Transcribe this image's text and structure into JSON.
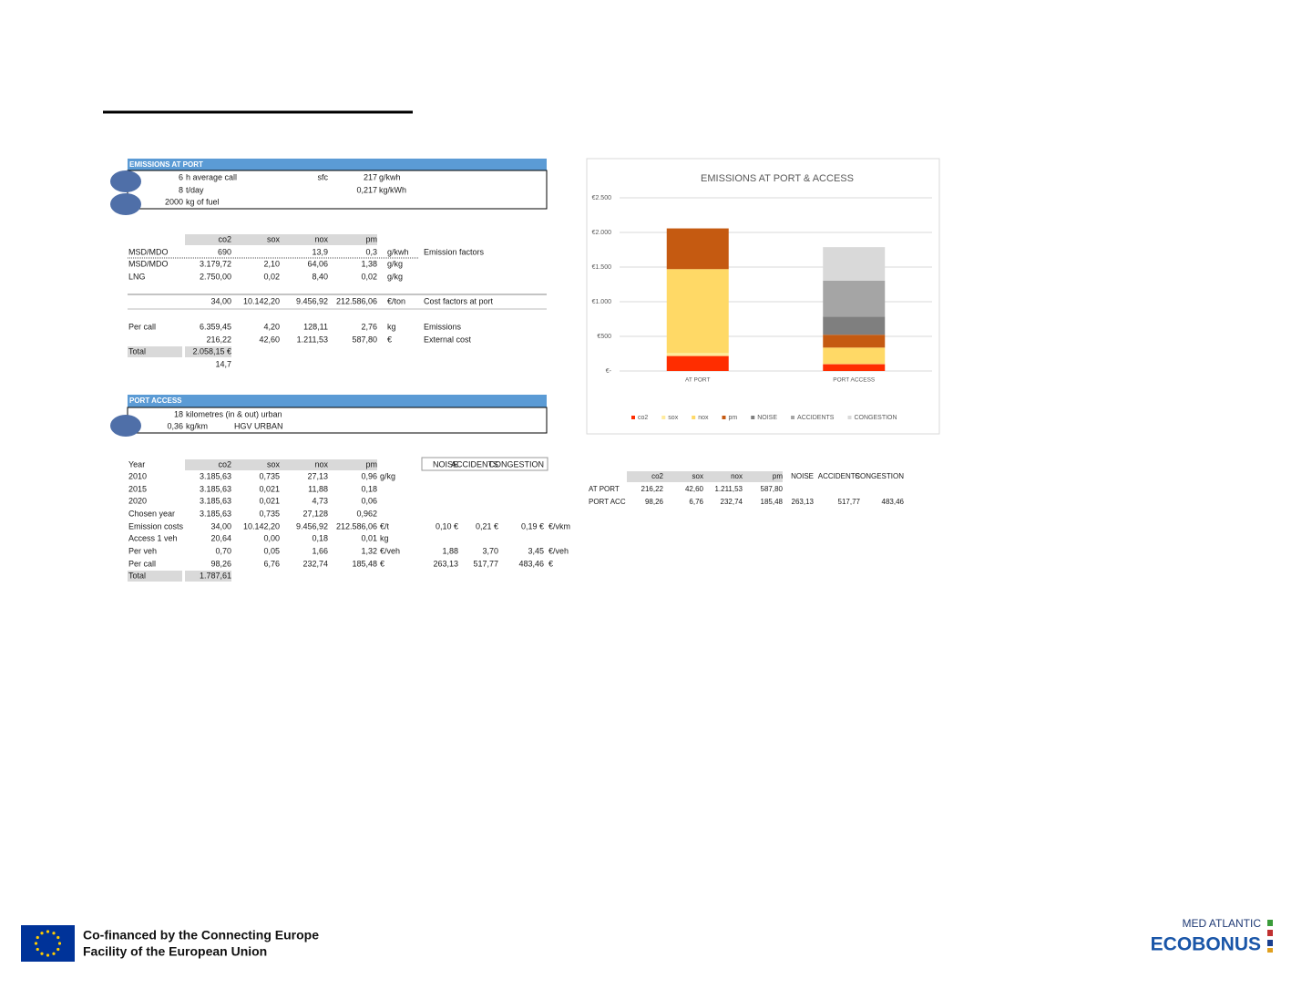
{
  "port_inputs": {
    "header": "EMISSIONS AT PORT",
    "rows": [
      [
        "6",
        "h average call",
        "sfc",
        "217",
        "g/kwh"
      ],
      [
        "8",
        "t/day",
        null,
        "0,217",
        "kg/kWh"
      ],
      [
        "2000",
        "kg of fuel"
      ]
    ]
  },
  "emission_factors": {
    "header": [
      null,
      "co2",
      "sox",
      "nox",
      "pm"
    ],
    "rows": [
      [
        "MSD/MDO",
        "690",
        null,
        "13,9",
        "0,3",
        "g/kwh",
        "Emission factors"
      ],
      [
        "MSD/MDO",
        "3.179,72",
        "2,10",
        "64,06",
        "1,38",
        "g/kg"
      ],
      [
        "LNG",
        "2.750,00",
        "0,02",
        "8,40",
        "0,02",
        "g/kg"
      ],
      [
        null,
        "34,00",
        "10.142,20",
        "9.456,92",
        "212.586,06",
        "€/ton",
        "Cost factors at port"
      ],
      [
        "Per call",
        "6.359,45",
        "4,20",
        "128,11",
        "2,76",
        "kg",
        "Emissions"
      ],
      [
        null,
        "216,22",
        "42,60",
        "1.211,53",
        "587,80",
        "€",
        "External cost"
      ],
      [
        "Total",
        "2.058,15 €"
      ],
      [
        null,
        "14,7"
      ]
    ]
  },
  "port_access_inputs": {
    "header": "PORT ACCESS",
    "rows": [
      [
        "18",
        "kilometres (in & out) urban"
      ],
      [
        "0,36",
        "kg/km",
        "HGV URBAN"
      ]
    ]
  },
  "port_access_table": {
    "header": [
      "Year",
      "co2",
      "sox",
      "nox",
      "pm",
      null,
      "NOISE",
      "ACCIDENTS",
      "CONGESTION"
    ],
    "rows": [
      [
        "2010",
        "3.185,63",
        "0,735",
        "27,13",
        "0,96",
        "g/kg"
      ],
      [
        "2015",
        "3.185,63",
        "0,021",
        "11,88",
        "0,18"
      ],
      [
        "2020",
        "3.185,63",
        "0,021",
        "4,73",
        "0,06"
      ],
      [
        "Chosen year",
        "3.185,63",
        "0,735",
        "27,128",
        "0,962"
      ],
      [
        "Emission costs",
        "34,00",
        "10.142,20",
        "9.456,92",
        "212.586,06",
        "€/t",
        "0,10 €",
        "0,21 €",
        "0,19 €",
        "€/vkm"
      ],
      [
        "Access 1 veh",
        "20,64",
        "0,00",
        "0,18",
        "0,01",
        "kg"
      ],
      [
        "Per veh",
        "0,70",
        "0,05",
        "1,66",
        "1,32",
        "€/veh",
        "1,88",
        "3,70",
        "3,45",
        "€/veh"
      ],
      [
        "Per call",
        "98,26",
        "6,76",
        "232,74",
        "185,48",
        "€",
        "263,13",
        "517,77",
        "483,46",
        "€"
      ],
      [
        "Total",
        "1.787,61"
      ]
    ]
  },
  "summary_table": {
    "header": [
      null,
      "co2",
      "sox",
      "nox",
      "pm",
      "NOISE",
      "ACCIDENTS",
      "CONGESTION"
    ],
    "rows": [
      [
        "AT PORT",
        "216,22",
        "42,60",
        "1.211,53",
        "587,80"
      ],
      [
        "PORT ACC",
        "98,26",
        "6,76",
        "232,74",
        "185,48",
        "263,13",
        "517,77",
        "483,46"
      ]
    ]
  },
  "chart_data": {
    "type": "bar",
    "stacked": true,
    "title": "EMISSIONS AT PORT & ACCESS",
    "categories": [
      "AT PORT",
      "PORT ACCESS"
    ],
    "series": [
      {
        "name": "co2",
        "color": "#ff2d00",
        "values": [
          216.22,
          98.26
        ]
      },
      {
        "name": "sox",
        "color": "#ffeb9c",
        "values": [
          42.6,
          6.76
        ]
      },
      {
        "name": "nox",
        "color": "#ffd966",
        "values": [
          1211.53,
          232.74
        ]
      },
      {
        "name": "pm",
        "color": "#c55a11",
        "values": [
          587.8,
          185.48
        ]
      },
      {
        "name": "NOISE",
        "color": "#7f7f7f",
        "values": [
          null,
          263.13
        ]
      },
      {
        "name": "ACCIDENTS",
        "color": "#a5a5a5",
        "values": [
          null,
          517.77
        ]
      },
      {
        "name": "CONGESTION",
        "color": "#d9d9d9",
        "values": [
          null,
          483.46
        ]
      }
    ],
    "ylim": [
      0,
      2500
    ],
    "yticks": [
      {
        "value": 0,
        "label": "€-"
      },
      {
        "value": 500,
        "label": "€500"
      },
      {
        "value": 1000,
        "label": "€1.000"
      },
      {
        "value": 1500,
        "label": "€1.500"
      },
      {
        "value": 2000,
        "label": "€2.000"
      },
      {
        "value": 2500,
        "label": "€2.500"
      }
    ],
    "grid": true,
    "legend": "bottom"
  },
  "footer": {
    "lines": [
      "Co-financed by the Connecting Europe",
      "Facility of the European Union"
    ],
    "logo_top": "MED ATLANTIC",
    "logo_main": "ECOBONUS"
  }
}
